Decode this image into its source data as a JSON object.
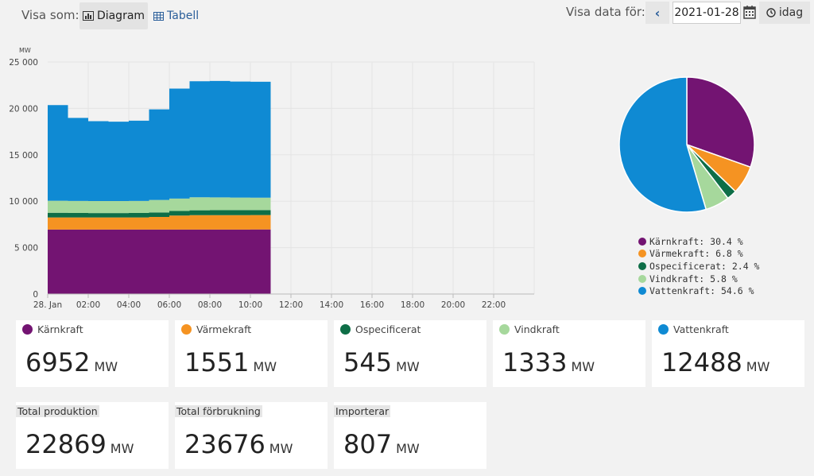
{
  "toolbar": {
    "view_as_label": "Visa som:",
    "diagram_label": "Diagram",
    "table_label": "Tabell",
    "show_data_for_label": "Visa data för:",
    "date_value": "2021-01-28",
    "today_label": "idag"
  },
  "colors": {
    "karnkraft": "#731472",
    "varmekraft": "#f59322",
    "ospecificerat": "#0e6e47",
    "vindkraft": "#a6d89c",
    "vattenkraft": "#0f8ad3"
  },
  "chart_data": [
    {
      "type": "area",
      "stacked": true,
      "ylabel": "MW",
      "ylim": [
        0,
        25000
      ],
      "yticks": [
        "0",
        "5 000",
        "10 000",
        "15 000",
        "20 000",
        "25 000"
      ],
      "xticks": [
        "28. Jan",
        "02:00",
        "04:00",
        "06:00",
        "08:00",
        "10:00",
        "12:00",
        "14:00",
        "16:00",
        "18:00",
        "20:00",
        "22:00"
      ],
      "x_hours": [
        0,
        1,
        2,
        3,
        4,
        5,
        6,
        7,
        8,
        9,
        10
      ],
      "series": [
        {
          "name": "Kärnkraft",
          "color": "#731472",
          "values": [
            6950,
            6950,
            6950,
            6950,
            6950,
            6950,
            6950,
            6950,
            6950,
            6950,
            6952
          ]
        },
        {
          "name": "Värmekraft",
          "color": "#f59322",
          "values": [
            1300,
            1300,
            1300,
            1300,
            1300,
            1350,
            1500,
            1550,
            1550,
            1550,
            1551
          ]
        },
        {
          "name": "Ospecificerat",
          "color": "#0e6e47",
          "values": [
            500,
            480,
            470,
            470,
            480,
            490,
            500,
            520,
            530,
            540,
            545
          ]
        },
        {
          "name": "Vindkraft",
          "color": "#a6d89c",
          "values": [
            1300,
            1300,
            1300,
            1300,
            1300,
            1350,
            1330,
            1400,
            1380,
            1350,
            1333
          ]
        },
        {
          "name": "Vattenkraft",
          "color": "#0f8ad3",
          "values": [
            10300,
            8950,
            8600,
            8550,
            8650,
            9750,
            11850,
            12500,
            12550,
            12500,
            12488
          ]
        }
      ]
    },
    {
      "type": "pie",
      "slices": [
        {
          "name": "Kärnkraft",
          "value": 30.4,
          "color": "#731472"
        },
        {
          "name": "Värmekraft",
          "value": 6.8,
          "color": "#f59322"
        },
        {
          "name": "Ospecificerat",
          "value": 2.4,
          "color": "#0e6e47"
        },
        {
          "name": "Vindkraft",
          "value": 5.8,
          "color": "#a6d89c"
        },
        {
          "name": "Vattenkraft",
          "value": 54.6,
          "color": "#0f8ad3"
        }
      ],
      "legend": [
        "Kärnkraft: 30.4 %",
        "Värmekraft: 6.8 %",
        "Ospecificerat: 2.4 %",
        "Vindkraft: 5.8 %",
        "Vattenkraft: 54.6 %"
      ]
    }
  ],
  "production_cards": [
    {
      "label": "Kärnkraft",
      "value": "6952",
      "unit": "MW"
    },
    {
      "label": "Värmekraft",
      "value": "1551",
      "unit": "MW"
    },
    {
      "label": "Ospecificerat",
      "value": "545",
      "unit": "MW"
    },
    {
      "label": "Vindkraft",
      "value": "1333",
      "unit": "MW"
    },
    {
      "label": "Vattenkraft",
      "value": "12488",
      "unit": "MW"
    }
  ],
  "summary_cards": [
    {
      "label": "Total produktion",
      "value": "22869",
      "unit": "MW"
    },
    {
      "label": "Total förbrukning",
      "value": "23676",
      "unit": "MW"
    },
    {
      "label": "Importerar",
      "value": "807",
      "unit": "MW"
    }
  ]
}
